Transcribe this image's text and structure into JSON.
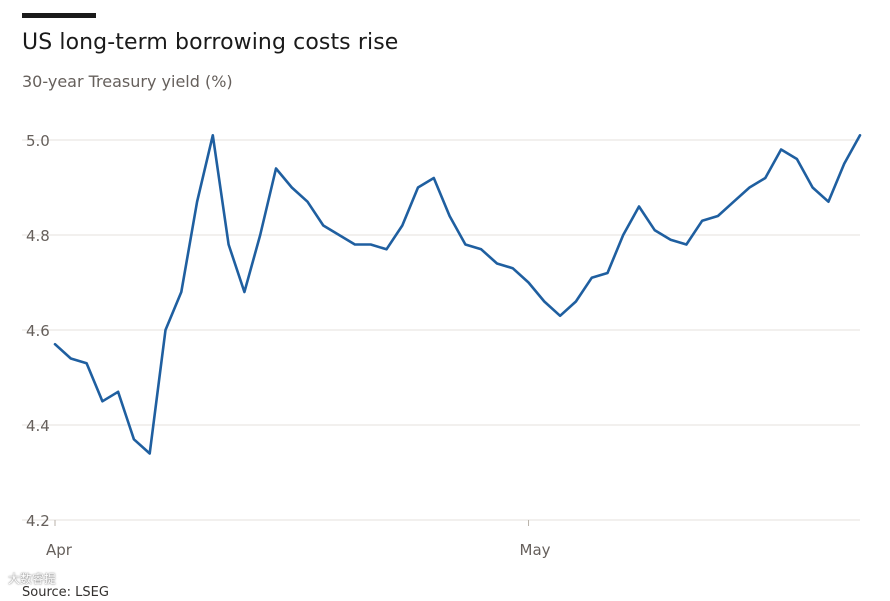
{
  "header": {
    "title": "US long-term borrowing costs rise",
    "subtitle": "30-year Treasury yield (%)"
  },
  "footer": {
    "source": "Source: LSEG"
  },
  "watermark": {
    "text": "大数睿提"
  },
  "colors": {
    "line": "#1f5fa0",
    "grid": "#e6e2dc",
    "text": "#66605c"
  },
  "chart_data": {
    "type": "line",
    "title": "US long-term borrowing costs rise",
    "subtitle": "30-year Treasury yield (%)",
    "xlabel": "",
    "ylabel": "",
    "ylim": [
      4.2,
      5.0
    ],
    "yticks": [
      4.2,
      4.4,
      4.6,
      4.8,
      5.0
    ],
    "ytick_labels": [
      "4.2",
      "4.4",
      "4.6",
      "4.8",
      "5.0"
    ],
    "xticks": [
      {
        "label": "Apr",
        "x": "2025-04-01"
      },
      {
        "label": "May",
        "x": "2025-05-01"
      }
    ],
    "xlim": [
      "2025-04-01",
      "2025-05-22"
    ],
    "grid": "horizontal",
    "series": [
      {
        "values": [
          [
            "2025-04-01",
            4.57
          ],
          [
            "2025-04-02",
            4.54
          ],
          [
            "2025-04-03",
            4.53
          ],
          [
            "2025-04-04",
            4.45
          ],
          [
            "2025-04-05",
            4.47
          ],
          [
            "2025-04-06",
            4.37
          ],
          [
            "2025-04-07",
            4.34
          ],
          [
            "2025-04-08",
            4.6
          ],
          [
            "2025-04-09",
            4.68
          ],
          [
            "2025-04-10",
            4.87
          ],
          [
            "2025-04-11",
            5.01
          ],
          [
            "2025-04-12",
            4.78
          ],
          [
            "2025-04-13",
            4.68
          ],
          [
            "2025-04-14",
            4.8
          ],
          [
            "2025-04-15",
            4.94
          ],
          [
            "2025-04-16",
            4.9
          ],
          [
            "2025-04-17",
            4.87
          ],
          [
            "2025-04-18",
            4.82
          ],
          [
            "2025-04-19",
            4.8
          ],
          [
            "2025-04-20",
            4.78
          ],
          [
            "2025-04-21",
            4.78
          ],
          [
            "2025-04-22",
            4.77
          ],
          [
            "2025-04-23",
            4.82
          ],
          [
            "2025-04-24",
            4.9
          ],
          [
            "2025-04-25",
            4.92
          ],
          [
            "2025-04-26",
            4.84
          ],
          [
            "2025-04-27",
            4.78
          ],
          [
            "2025-04-28",
            4.77
          ],
          [
            "2025-04-29",
            4.74
          ],
          [
            "2025-04-30",
            4.73
          ],
          [
            "2025-05-01",
            4.7
          ],
          [
            "2025-05-02",
            4.66
          ],
          [
            "2025-05-03",
            4.63
          ],
          [
            "2025-05-04",
            4.66
          ],
          [
            "2025-05-05",
            4.71
          ],
          [
            "2025-05-06",
            4.72
          ],
          [
            "2025-05-07",
            4.8
          ],
          [
            "2025-05-08",
            4.86
          ],
          [
            "2025-05-09",
            4.81
          ],
          [
            "2025-05-10",
            4.79
          ],
          [
            "2025-05-11",
            4.78
          ],
          [
            "2025-05-12",
            4.83
          ],
          [
            "2025-05-13",
            4.84
          ],
          [
            "2025-05-14",
            4.87
          ],
          [
            "2025-05-15",
            4.9
          ],
          [
            "2025-05-16",
            4.92
          ],
          [
            "2025-05-17",
            4.98
          ],
          [
            "2025-05-18",
            4.96
          ],
          [
            "2025-05-19",
            4.9
          ],
          [
            "2025-05-20",
            4.87
          ],
          [
            "2025-05-21",
            4.95
          ],
          [
            "2025-05-22",
            5.01
          ]
        ]
      }
    ]
  }
}
